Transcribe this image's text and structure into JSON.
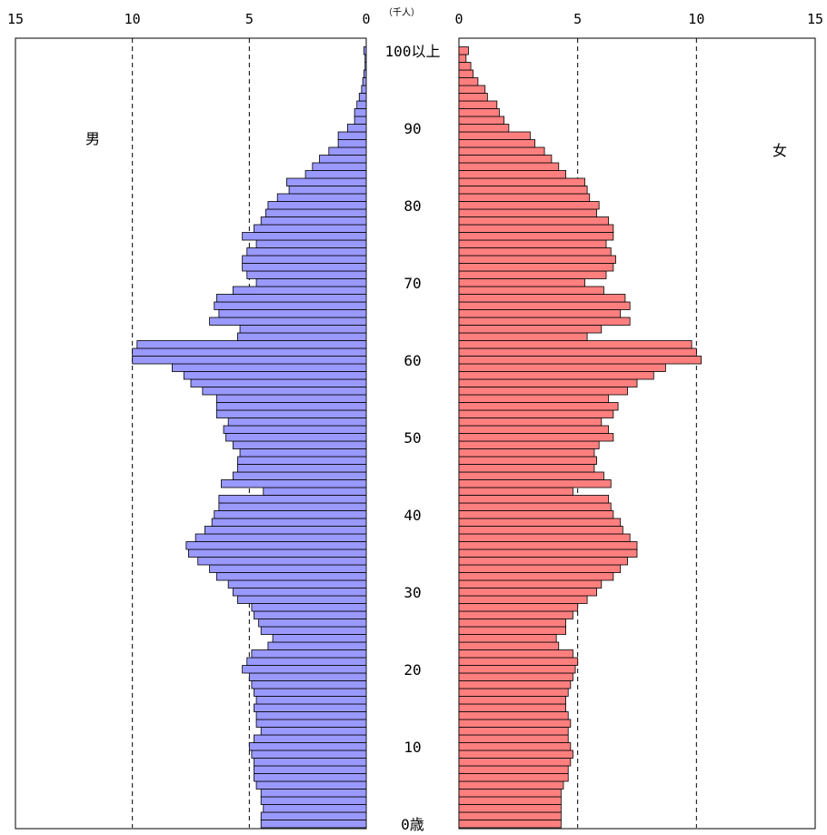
{
  "chart_data": {
    "type": "bar",
    "orientation": "horizontal",
    "xlim": [
      0,
      15
    ],
    "x_ticks": [
      "0",
      "5",
      "10",
      "15"
    ],
    "unit_label": "（千人）",
    "male_label": "男",
    "female_label": "女",
    "age_labels": [
      {
        "age": 0,
        "label": "0歳"
      },
      {
        "age": 10,
        "label": "10"
      },
      {
        "age": 20,
        "label": "20"
      },
      {
        "age": 30,
        "label": "30"
      },
      {
        "age": 40,
        "label": "40"
      },
      {
        "age": 50,
        "label": "50"
      },
      {
        "age": 60,
        "label": "60"
      },
      {
        "age": 70,
        "label": "70"
      },
      {
        "age": 80,
        "label": "80"
      },
      {
        "age": 90,
        "label": "90"
      },
      {
        "age": 100,
        "label": "100以上"
      }
    ],
    "series": [
      {
        "name": "男",
        "color": "#9999ff",
        "values": [
          4.5,
          4.5,
          4.4,
          4.5,
          4.5,
          4.7,
          4.8,
          4.8,
          4.8,
          4.9,
          5.0,
          4.8,
          4.5,
          4.7,
          4.7,
          4.8,
          4.7,
          4.8,
          4.9,
          5.0,
          5.3,
          5.1,
          4.9,
          4.2,
          4.0,
          4.5,
          4.6,
          4.8,
          4.9,
          5.5,
          5.7,
          5.9,
          6.4,
          6.7,
          7.2,
          7.6,
          7.7,
          7.3,
          6.9,
          6.6,
          6.5,
          6.3,
          6.3,
          4.4,
          6.2,
          5.7,
          5.5,
          5.5,
          5.4,
          5.7,
          6.0,
          6.1,
          5.9,
          6.4,
          6.4,
          6.4,
          7.0,
          7.5,
          7.8,
          8.3,
          10.0,
          10.0,
          9.8,
          5.5,
          5.4,
          6.7,
          6.3,
          6.5,
          6.4,
          5.7,
          4.7,
          5.1,
          5.3,
          5.3,
          5.1,
          4.7,
          5.3,
          4.8,
          4.5,
          4.3,
          4.2,
          3.8,
          3.3,
          3.4,
          2.6,
          2.3,
          2.0,
          1.6,
          1.2,
          1.2,
          0.8,
          0.5,
          0.5,
          0.4,
          0.3,
          0.2,
          0.15,
          0.1,
          0.05,
          0.05,
          0.1
        ]
      },
      {
        "name": "女",
        "color": "#ff7f7f",
        "values": [
          4.3,
          4.3,
          4.3,
          4.3,
          4.3,
          4.4,
          4.6,
          4.6,
          4.7,
          4.8,
          4.7,
          4.6,
          4.6,
          4.7,
          4.6,
          4.5,
          4.5,
          4.6,
          4.7,
          4.8,
          4.9,
          5.0,
          4.8,
          4.2,
          4.1,
          4.5,
          4.5,
          4.8,
          5.0,
          5.4,
          5.8,
          6.0,
          6.5,
          6.8,
          7.1,
          7.5,
          7.5,
          7.2,
          6.9,
          6.8,
          6.5,
          6.4,
          6.3,
          4.8,
          6.4,
          6.1,
          5.7,
          5.8,
          5.7,
          5.9,
          6.5,
          6.3,
          6.0,
          6.5,
          6.7,
          6.3,
          7.1,
          7.5,
          8.2,
          8.7,
          10.2,
          10.0,
          9.8,
          5.4,
          6.0,
          7.2,
          6.8,
          7.2,
          7.0,
          6.1,
          5.3,
          6.2,
          6.5,
          6.6,
          6.4,
          6.2,
          6.5,
          6.5,
          6.3,
          5.8,
          5.9,
          5.5,
          5.4,
          5.3,
          4.5,
          4.2,
          3.9,
          3.6,
          3.2,
          3.0,
          2.1,
          1.9,
          1.7,
          1.6,
          1.2,
          1.1,
          0.8,
          0.6,
          0.5,
          0.3,
          0.4
        ]
      }
    ]
  }
}
